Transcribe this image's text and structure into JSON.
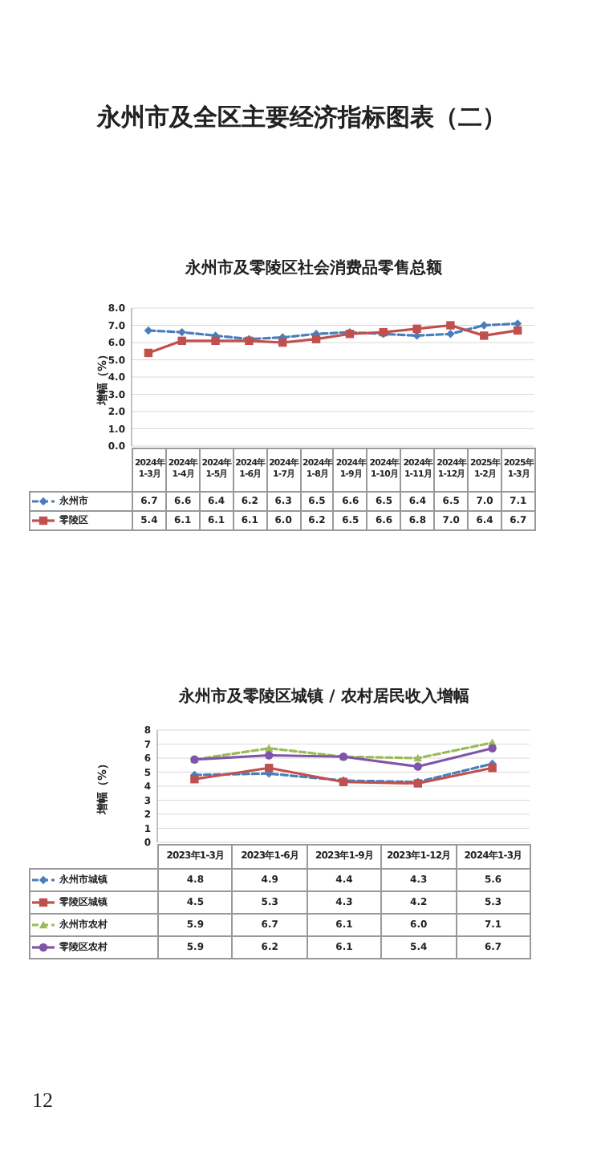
{
  "chart_data": [
    {
      "type": "line",
      "title": "永州市及零陵区社会消费品零售总额",
      "ylabel": "增幅（%）",
      "annotations": [
        "永州市及全区主要经济指标图表（二）"
      ],
      "categories": [
        "2024年1-3月",
        "2024年1-4月",
        "2024年1-5月",
        "2024年1-6月",
        "2024年1-7月",
        "2024年1-8月",
        "2024年1-9月",
        "2024年1-10月",
        "2024年1-11月",
        "2024年1-12月",
        "2025年1-2月",
        "2025年1-3月"
      ],
      "series": [
        {
          "name": "永州市",
          "color": "#4a7ebb",
          "marker": "diamond",
          "line_style": "dashed",
          "values": [
            6.7,
            6.6,
            6.4,
            6.2,
            6.3,
            6.5,
            6.6,
            6.5,
            6.4,
            6.5,
            7.0,
            7.1
          ],
          "value_labels": [
            "6.7",
            "6.6",
            "6.4",
            "6.2",
            "6.3",
            "6.5",
            "6.6",
            "6.5",
            "6.4",
            "6.5",
            "7.0",
            "7.1"
          ]
        },
        {
          "name": "零陵区",
          "color": "#c0504d",
          "marker": "square",
          "line_style": "solid",
          "values": [
            5.4,
            6.1,
            6.1,
            6.1,
            6.0,
            6.2,
            6.5,
            6.6,
            6.8,
            7.0,
            6.4,
            6.7
          ],
          "value_labels": [
            "5.4",
            "6.1",
            "6.1",
            "6.1",
            "6.0",
            "6.2",
            "6.5",
            "6.6",
            "6.8",
            "7.0",
            "6.4",
            "6.7"
          ]
        }
      ],
      "ylim": [
        0,
        8
      ],
      "yticks": [
        {
          "value": 0,
          "label": "0.0"
        },
        {
          "value": 1,
          "label": "1.0"
        },
        {
          "value": 2,
          "label": "2.0"
        },
        {
          "value": 3,
          "label": "3.0"
        },
        {
          "value": 4,
          "label": "4.0"
        },
        {
          "value": 5,
          "label": "5.0"
        },
        {
          "value": 6,
          "label": "6.0"
        },
        {
          "value": 7,
          "label": "7.0"
        },
        {
          "value": 8,
          "label": "8.0"
        }
      ],
      "grid": "y",
      "legend": "bottom"
    },
    {
      "type": "line",
      "title": "永州市及零陵区城镇 / 农村居民收入增幅",
      "ylabel": "增幅（%）",
      "annotations": [
        "12"
      ],
      "categories": [
        "2023年1-3月",
        "2023年1-6月",
        "2023年1-9月",
        "2023年1-12月",
        "2024年1-3月"
      ],
      "series": [
        {
          "name": "永州市城镇",
          "color": "#4a7ebb",
          "marker": "diamond",
          "line_style": "dashed",
          "values": [
            4.8,
            4.9,
            4.4,
            4.3,
            5.6
          ],
          "value_labels": [
            "4.8",
            "4.9",
            "4.4",
            "4.3",
            "5.6"
          ]
        },
        {
          "name": "零陵区城镇",
          "color": "#c0504d",
          "marker": "square",
          "line_style": "solid",
          "values": [
            4.5,
            5.3,
            4.3,
            4.2,
            5.3
          ],
          "value_labels": [
            "4.5",
            "5.3",
            "4.3",
            "4.2",
            "5.3"
          ]
        },
        {
          "name": "永州市农村",
          "color": "#9bbb59",
          "marker": "triangle",
          "line_style": "dashed",
          "values": [
            5.9,
            6.7,
            6.1,
            6.0,
            7.1
          ],
          "value_labels": [
            "5.9",
            "6.7",
            "6.1",
            "6.0",
            "7.1"
          ]
        },
        {
          "name": "零陵区农村",
          "color": "#7f55a8",
          "marker": "circle",
          "line_style": "solid",
          "values": [
            5.9,
            6.2,
            6.1,
            5.4,
            6.7
          ],
          "value_labels": [
            "5.9",
            "6.2",
            "6.1",
            "5.4",
            "6.7"
          ]
        }
      ],
      "ylim": [
        0,
        8
      ],
      "yticks": [
        0,
        1,
        2,
        3,
        4,
        5,
        6,
        7,
        8
      ],
      "grid": "y",
      "legend": "bottom"
    }
  ]
}
